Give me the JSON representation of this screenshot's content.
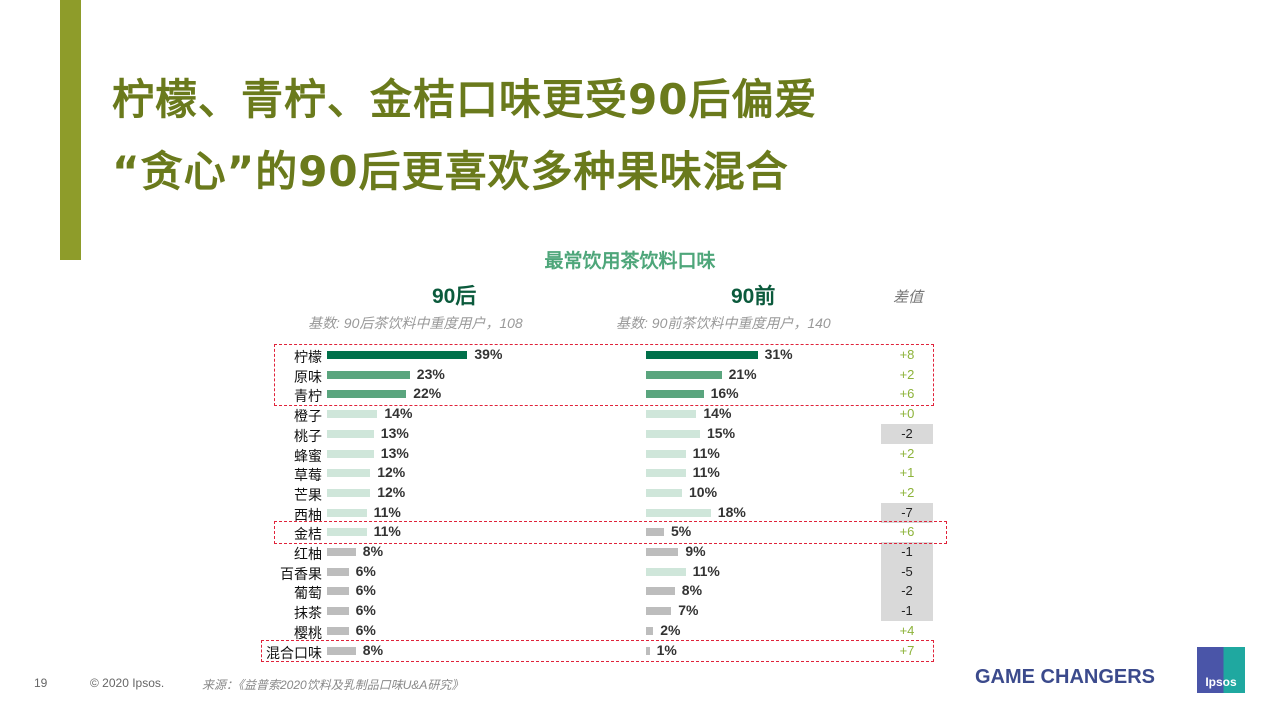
{
  "header": {
    "title_line1": "柠檬、青柠、金桔口味更受90后偏爱",
    "title_line2": "“贪心”的90后更喜欢多种果味混合"
  },
  "chart_data": {
    "type": "bar",
    "title": "最常饮用茶饮料口味",
    "categories": [
      "柠檬",
      "原味",
      "青柠",
      "橙子",
      "桃子",
      "蜂蜜",
      "草莓",
      "芒果",
      "西柚",
      "金桔",
      "红柚",
      "百香果",
      "葡萄",
      "抹茶",
      "樱桃",
      "混合口味"
    ],
    "series": [
      {
        "name": "90后",
        "base": "基数: 90后茶饮料中重度用户，108",
        "values": [
          39,
          23,
          22,
          14,
          13,
          13,
          12,
          12,
          11,
          11,
          8,
          6,
          6,
          6,
          6,
          8
        ]
      },
      {
        "name": "90前",
        "base": "基数: 90前茶饮料中重度用户，140",
        "values": [
          31,
          21,
          16,
          14,
          15,
          11,
          11,
          10,
          18,
          5,
          9,
          11,
          8,
          7,
          2,
          1
        ]
      }
    ],
    "diff_label": "差值",
    "diff": [
      "+8",
      "+2",
      "+6",
      "+0",
      "-2",
      "+2",
      "+1",
      "+2",
      "-7",
      "+6",
      "-1",
      "-5",
      "-2",
      "-1",
      "+4",
      "+7"
    ],
    "highlighted": [
      "柠檬",
      "原味",
      "青柠",
      "金桔",
      "混合口味"
    ],
    "unit": "%",
    "colors": {
      "top1": "#00704a",
      "top3": "#5aa57e",
      "mid": "#cfe6da",
      "low": "#bdbdbd",
      "positive_diff": "#8db33a",
      "negative_diff_bg": "#d9d9d9",
      "highlight_box": "#e0223a"
    }
  },
  "footer": {
    "page": "19",
    "copyright": "© 2020 Ipsos.",
    "source": "来源：《益普索2020饮料及乳制品口味U&A研究》",
    "tagline": "GAME CHANGERS",
    "logo": "Ipsos"
  }
}
